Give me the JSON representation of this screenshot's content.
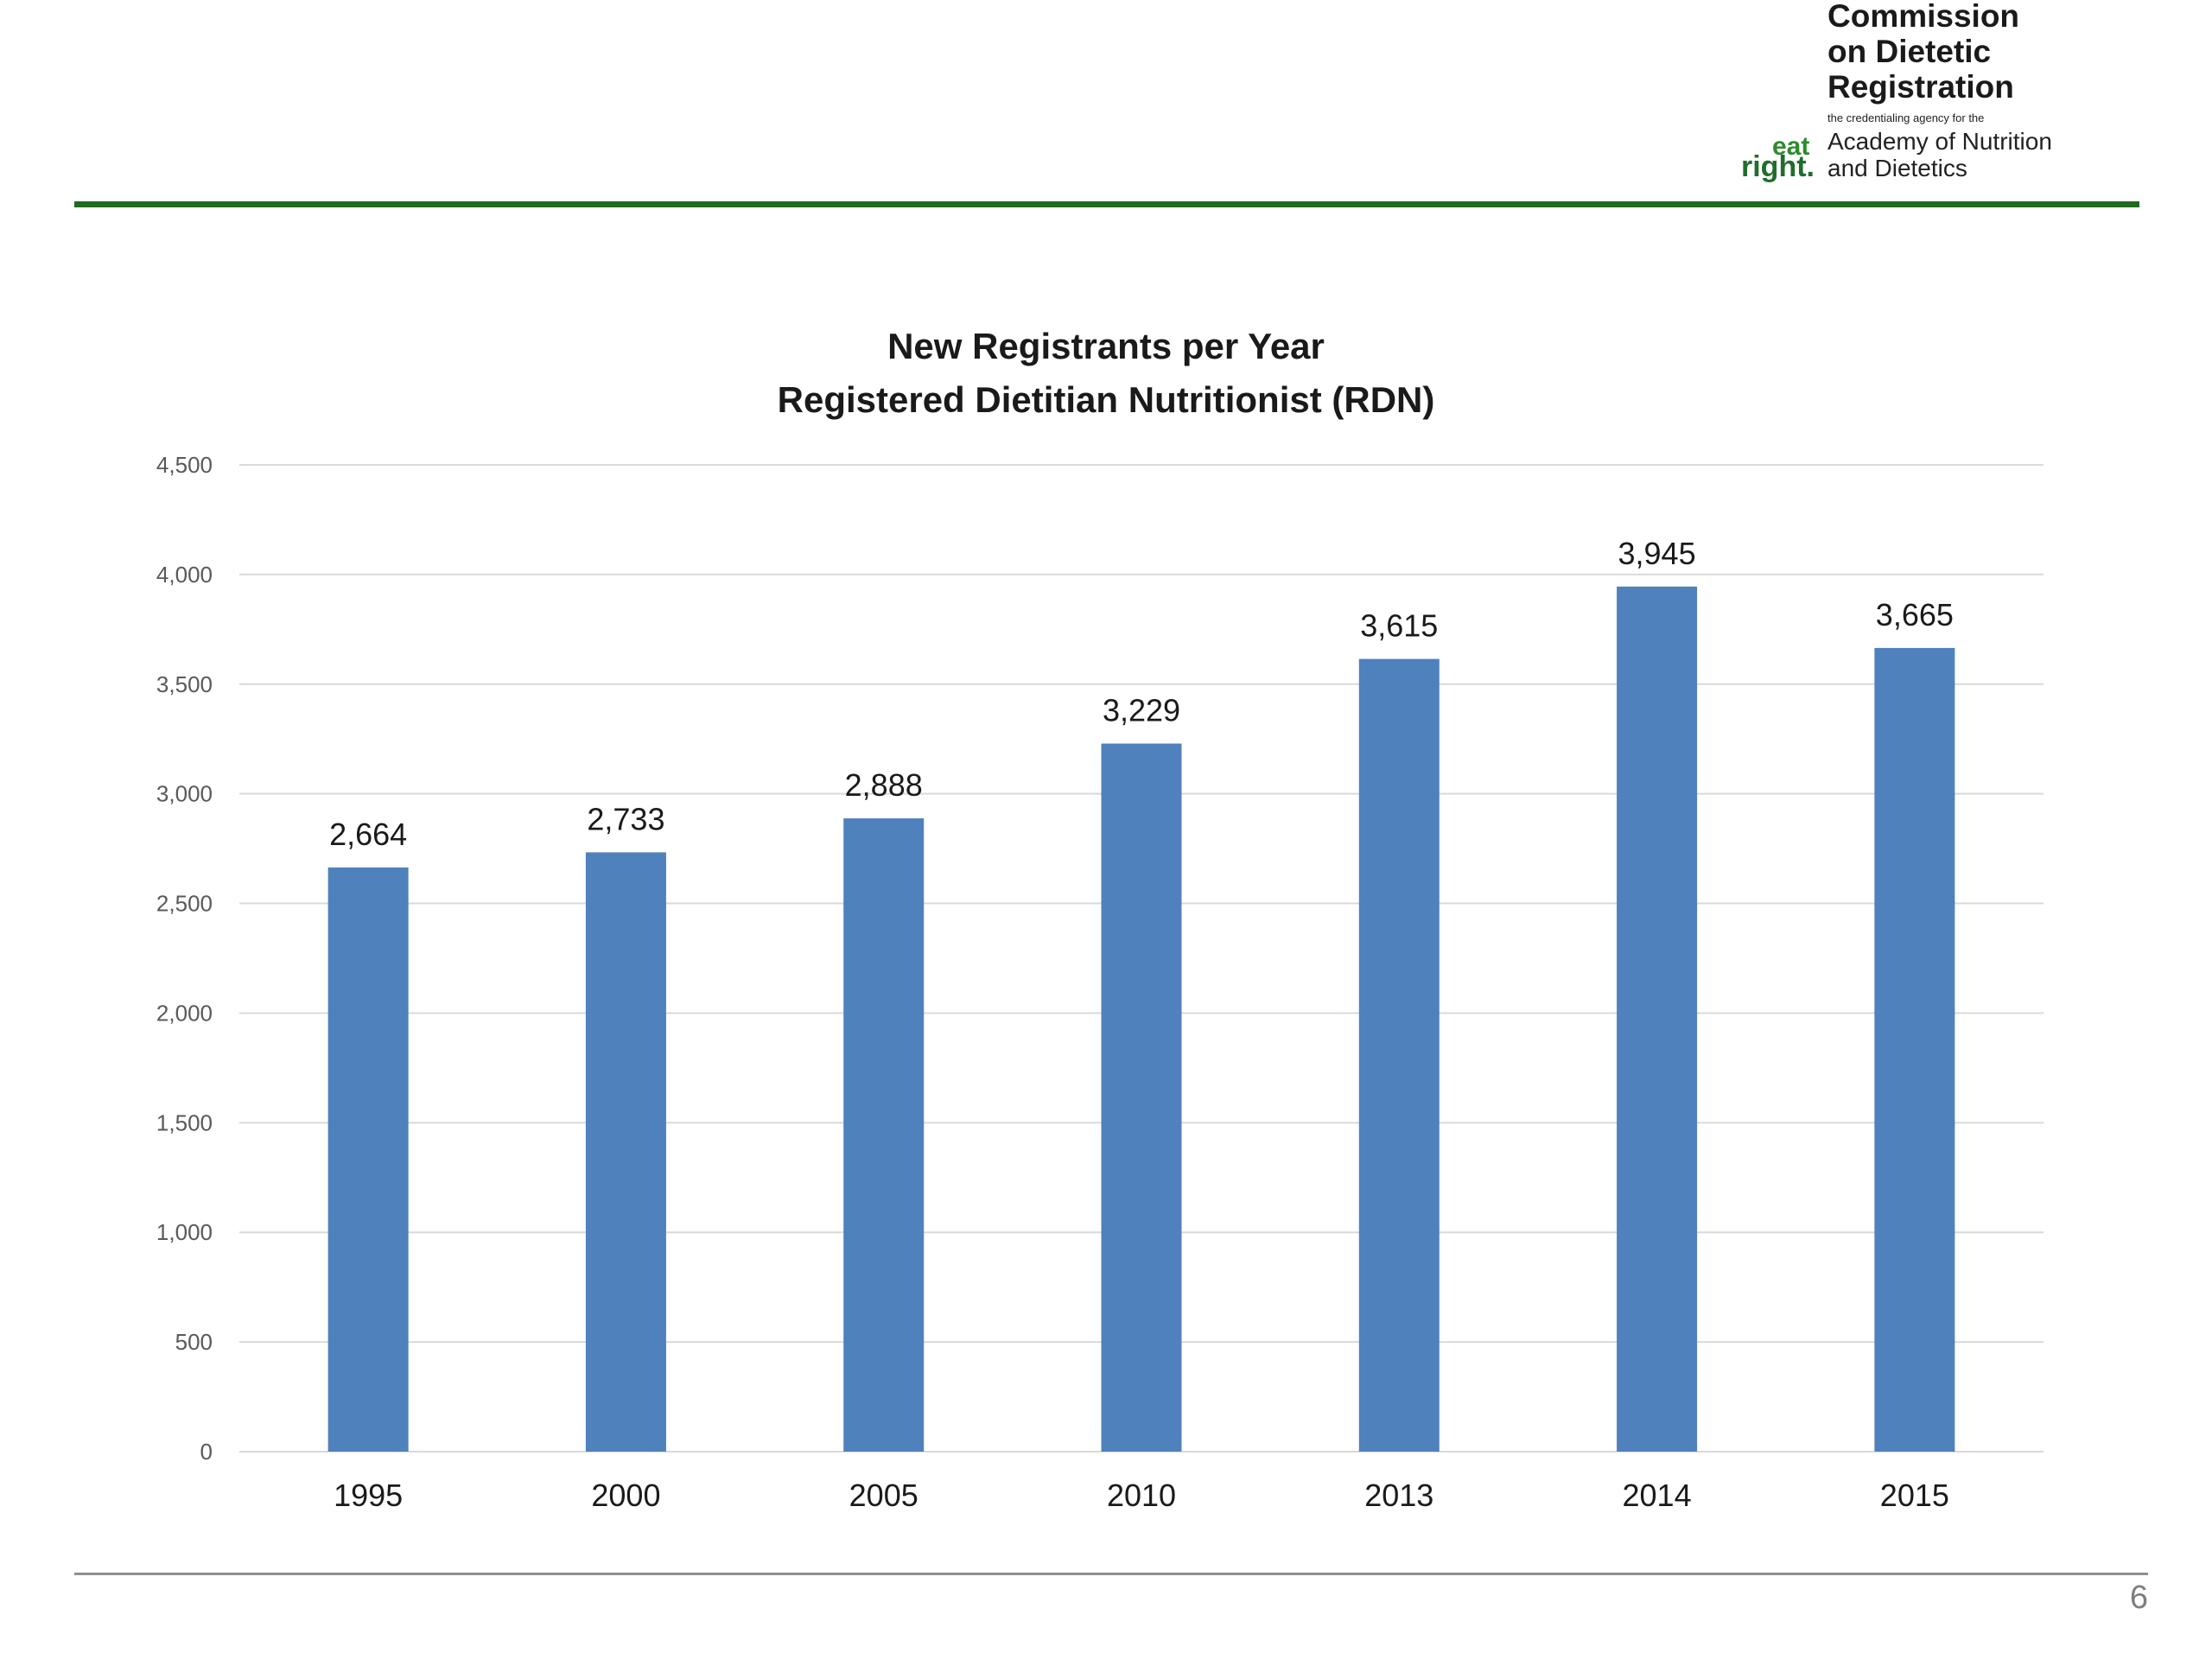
{
  "header": {
    "logo": {
      "line1": "Commission",
      "line2": "on Dietetic",
      "line3": "Registration",
      "tagline": "the credentialing agency for the",
      "academy_line1": "Academy of Nutrition",
      "academy_line2": "and Dietetics",
      "eat": "eat",
      "right": "right."
    }
  },
  "colors": {
    "bar": "#4f81bd",
    "header_rule": "#1f6a1f",
    "gridline": "#d9d9d9"
  },
  "chart_data": {
    "type": "bar",
    "title": "New Registrants per Year",
    "subtitle": "Registered Dietitian Nutritionist (RDN)",
    "categories": [
      "1995",
      "2000",
      "2005",
      "2010",
      "2013",
      "2014",
      "2015"
    ],
    "values": [
      2664,
      2733,
      2888,
      3229,
      3615,
      3945,
      3665
    ],
    "value_labels": [
      "2,664",
      "2,733",
      "2,888",
      "3,229",
      "3,615",
      "3,945",
      "3,665"
    ],
    "ylim": [
      0,
      4500
    ],
    "yticks": [
      0,
      500,
      1000,
      1500,
      2000,
      2500,
      3000,
      3500,
      4000,
      4500
    ],
    "ytick_labels": [
      "0",
      "500",
      "1,000",
      "1,500",
      "2,000",
      "2,500",
      "3,000",
      "3,500",
      "4,000",
      "4,500"
    ],
    "grid": true,
    "legend": "none"
  },
  "footer": {
    "page_number": "6"
  }
}
